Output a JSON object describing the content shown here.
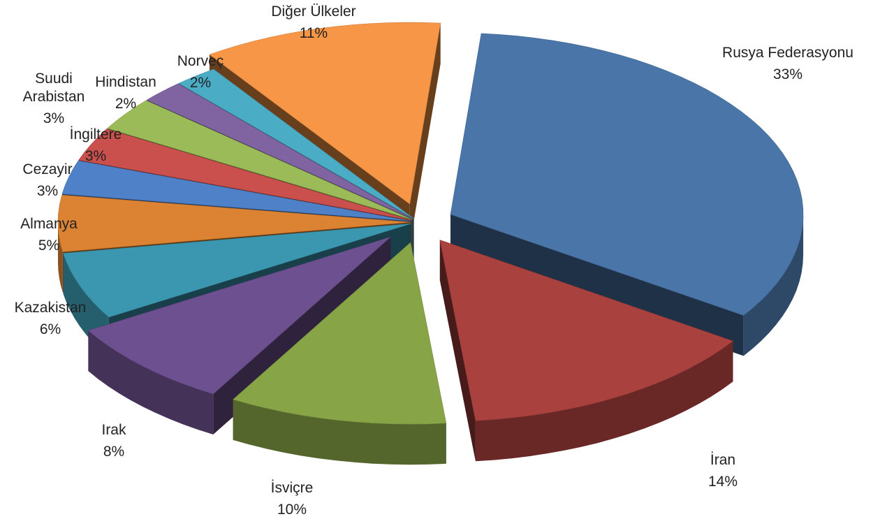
{
  "chart_data": {
    "type": "pie",
    "style": "3d-exploded",
    "legend": "none",
    "slices": [
      {
        "name": "Rusya Federasyonu",
        "value": 33,
        "label": "33%",
        "color": "#4A75A8"
      },
      {
        "name": "İran",
        "value": 14,
        "label": "14%",
        "color": "#A9413E"
      },
      {
        "name": "İsviçre",
        "value": 10,
        "label": "10%",
        "color": "#87A447"
      },
      {
        "name": "Irak",
        "value": 8,
        "label": "8%",
        "color": "#6D5090"
      },
      {
        "name": "Kazakistan",
        "value": 6,
        "label": "6%",
        "color": "#3B97AF"
      },
      {
        "name": "Almanya",
        "value": 5,
        "label": "5%",
        "color": "#DB8332"
      },
      {
        "name": "Cezayir",
        "value": 3,
        "label": "3%",
        "color": "#4F81C8"
      },
      {
        "name": "İngiltere",
        "value": 3,
        "label": "3%",
        "color": "#C9504C"
      },
      {
        "name": "Suudi Arabistan",
        "value": 3,
        "label": "3%",
        "color": "#9BBB59"
      },
      {
        "name": "Hindistan",
        "value": 2,
        "label": "2%",
        "color": "#8064A2"
      },
      {
        "name": "Norveç",
        "value": 2,
        "label": "2%",
        "color": "#4BACC6"
      },
      {
        "name": "Diğer Ülkeler",
        "value": 11,
        "label": "11%",
        "color": "#F79646"
      }
    ]
  }
}
